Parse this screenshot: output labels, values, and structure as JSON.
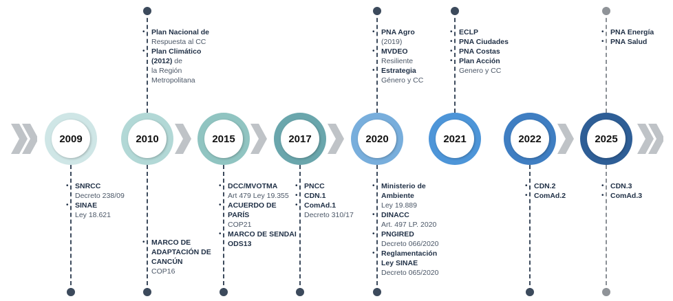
{
  "milestones": [
    {
      "year": "2009",
      "color": "#cfe6e6",
      "above": [],
      "below": [
        {
          "label": "SNRCC",
          "sub": "Decreto 238/09"
        },
        {
          "label": "SINAE",
          "sub": "Ley 18.621"
        }
      ]
    },
    {
      "year": "2010",
      "color": "#b2d8d6",
      "above": [
        {
          "label": "Plan Nacional de",
          "sub": "Respuesta al CC"
        },
        {
          "label": "Plan Climático (2012)",
          "label_rest": " de",
          "sub": "la Región Metropolitana"
        }
      ],
      "below": [
        {
          "label": "MARCO DE ADAPTACIÓN DE CANCÚN",
          "sub": "COP16"
        }
      ]
    },
    {
      "year": "2015",
      "color": "#90c4c1",
      "above": [],
      "below": [
        {
          "label": "DCC/MVOTMA",
          "sub": "Art 479 Ley 19.355"
        },
        {
          "label": "ACUERDO DE PARÍS",
          "sub": "COP21"
        },
        {
          "label": "MARCO DE SENDAI ODS13",
          "sub": ""
        }
      ]
    },
    {
      "year": "2017",
      "color": "#6aa6ac",
      "above": [],
      "below": [
        {
          "label": "PNCC",
          "sub": ""
        },
        {
          "label": "CDN.1",
          "sub": ""
        },
        {
          "label": "ComAd.1",
          "sub": "Decreto 310/17"
        }
      ]
    },
    {
      "year": "2020",
      "color": "#78aedc",
      "above": [
        {
          "label": "PNA Agro",
          "sub": "(2019)"
        },
        {
          "label": "MVDEO",
          "sub": "Resiliente"
        },
        {
          "label": "Estrategia",
          "sub": "Género y CC"
        }
      ],
      "below": [
        {
          "label": "Ministerio de Ambiente",
          "sub": "Ley 19.889"
        },
        {
          "label": "DINACC",
          "sub": "Art. 497 LP. 2020"
        },
        {
          "label": "PNGIRED",
          "sub": "Decreto 066/2020"
        },
        {
          "label": "Reglamentación Ley SINAE",
          "sub": "Decreto 065/2020"
        }
      ]
    },
    {
      "year": "2021",
      "color": "#4d95d8",
      "above": [
        {
          "label": "ECLP",
          "sub": ""
        },
        {
          "label": "PNA Ciudades",
          "sub": ""
        },
        {
          "label": "PNA Costas",
          "sub": ""
        },
        {
          "label": "Plan Acción",
          "sub": "Genero y CC"
        }
      ],
      "below": []
    },
    {
      "year": "2022",
      "color": "#3f7ec2",
      "above": [],
      "below": [
        {
          "label": "CDN.2",
          "sub": ""
        },
        {
          "label": "ComAd.2",
          "sub": ""
        }
      ]
    },
    {
      "year": "2025",
      "color": "#2e5e96",
      "above": [
        {
          "label": "PNA Energía",
          "sub": ""
        },
        {
          "label": "PNA Salud",
          "sub": ""
        }
      ],
      "below": [
        {
          "label": "CDN.3",
          "sub": ""
        },
        {
          "label": "ComAd.3",
          "sub": ""
        }
      ]
    }
  ]
}
